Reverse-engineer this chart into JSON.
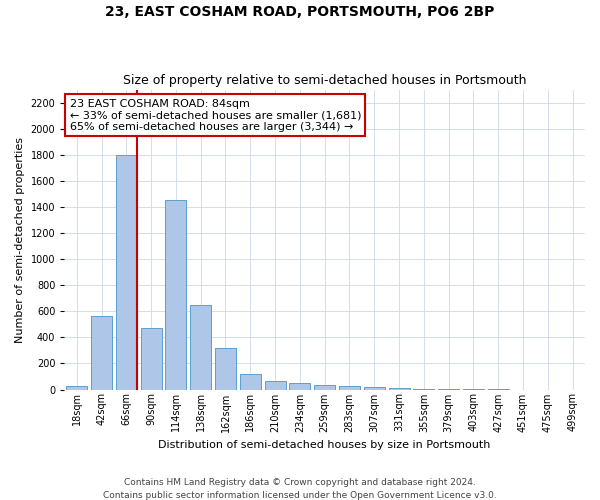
{
  "title": "23, EAST COSHAM ROAD, PORTSMOUTH, PO6 2BP",
  "subtitle": "Size of property relative to semi-detached houses in Portsmouth",
  "xlabel": "Distribution of semi-detached houses by size in Portsmouth",
  "ylabel": "Number of semi-detached properties",
  "footer_line1": "Contains HM Land Registry data © Crown copyright and database right 2024.",
  "footer_line2": "Contains public sector information licensed under the Open Government Licence v3.0.",
  "annotation_line1": "23 EAST COSHAM ROAD: 84sqm",
  "annotation_line2": "← 33% of semi-detached houses are smaller (1,681)",
  "annotation_line3": "65% of semi-detached houses are larger (3,344) →",
  "bar_categories": [
    "18sqm",
    "42sqm",
    "66sqm",
    "90sqm",
    "114sqm",
    "138sqm",
    "162sqm",
    "186sqm",
    "210sqm",
    "234sqm",
    "259sqm",
    "283sqm",
    "307sqm",
    "331sqm",
    "355sqm",
    "379sqm",
    "403sqm",
    "427sqm",
    "451sqm",
    "475sqm",
    "499sqm"
  ],
  "bar_values": [
    30,
    560,
    1800,
    470,
    1450,
    650,
    320,
    120,
    65,
    50,
    35,
    25,
    20,
    10,
    5,
    2,
    1,
    1,
    0,
    0,
    0
  ],
  "bar_color": "#aec6e8",
  "bar_edge_color": "#5a9fd4",
  "grid_color": "#d0d8e8",
  "vline_color": "#cc0000",
  "annotation_box_color": "#cc0000",
  "ylim": [
    0,
    2300
  ],
  "yticks": [
    0,
    200,
    400,
    600,
    800,
    1000,
    1200,
    1400,
    1600,
    1800,
    2000,
    2200
  ],
  "vline_x": 2.43,
  "bg_color": "#ffffff",
  "title_fontsize": 10,
  "subtitle_fontsize": 9,
  "annotation_fontsize": 8,
  "ylabel_fontsize": 8,
  "xlabel_fontsize": 8,
  "tick_fontsize": 7,
  "footer_fontsize": 6.5
}
